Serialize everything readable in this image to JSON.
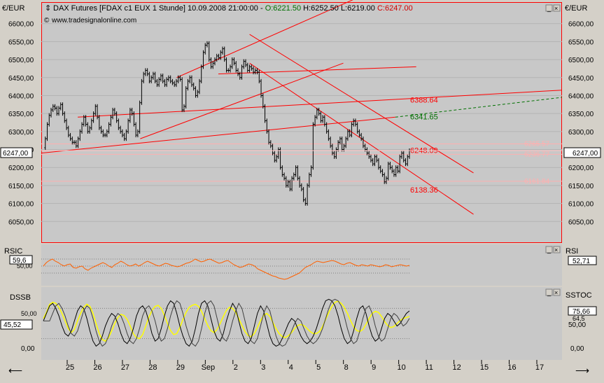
{
  "header": {
    "icon": "chart-icon",
    "title": "DAX Futures [FDAX c1 EUX  1 Stunde] 10.09.2008 21:00:00 -",
    "open": "O:6221.50",
    "hlc": "H:6252.50 L:6219.00",
    "close": "C:6247.00",
    "website": "www.tradesignalonline.com"
  },
  "colors": {
    "background": "#c0c0c0",
    "pane_bg": "#c8c8c8",
    "price": "#000000",
    "trend": "#ff0000",
    "forecast": "#007000",
    "rsi": "#ff6000",
    "stoch_fast": "#000000",
    "stoch_slow": "#ffff00",
    "frame": "#ff0000"
  },
  "price_pane": {
    "unit_left": "€/EUR",
    "unit_right": "€/EUR",
    "ylim": [
      6000,
      6650
    ],
    "ticks": [
      "6600,00",
      "6550,00",
      "6500,00",
      "6450,00",
      "6400,00",
      "6350,00",
      "6300,00",
      "6250,00",
      "6200,00",
      "6150,00",
      "6100,00",
      "6050,00"
    ],
    "tick_values": [
      6600,
      6550,
      6500,
      6450,
      6400,
      6350,
      6300,
      6250,
      6200,
      6150,
      6100,
      6050
    ],
    "current_left": "6247,00",
    "current_right": "6247,00",
    "current_value": 6247,
    "levels": [
      {
        "label": "6388.64",
        "value": 6388.64,
        "color": "#ff0000"
      },
      {
        "label": "6341.65",
        "value": 6341.65,
        "color": "#007000"
      },
      {
        "label": "6248.09",
        "value": 6248.09,
        "color": "#ff0000"
      },
      {
        "label": "6138.36",
        "value": 6138.36,
        "color": "#ff0000"
      }
    ],
    "right_levels": [
      {
        "label": "6265.57",
        "value": 6265.57
      },
      {
        "label": "6236.77",
        "value": 6236.77
      },
      {
        "label": "6161.84",
        "value": 6161.84
      }
    ]
  },
  "rsi_pane": {
    "label_left": "RSIC",
    "value_left": "59,6",
    "label_left2": "50,00",
    "label_right": "RSI",
    "value_right": "52,71",
    "ylim": [
      25,
      78
    ],
    "gridlines": [
      60,
      50,
      40
    ]
  },
  "stoch_pane": {
    "label_left": "DSSB",
    "value_left": "45,52",
    "label_right": "SSTOC",
    "values_right": [
      "75,66",
      "64,5",
      "50,00",
      "0,00"
    ],
    "ticks_left": [
      "50,00",
      "0,00"
    ],
    "ylim": [
      -18,
      118
    ],
    "gridlines": [
      80,
      20
    ]
  },
  "x_axis": {
    "labels": [
      "25",
      "26",
      "27",
      "28",
      "29",
      "Sep",
      "2",
      "3",
      "4",
      "5",
      "8",
      "9",
      "10",
      "11",
      "12",
      "15",
      "16",
      "17"
    ]
  },
  "chart_data": {
    "type": "line",
    "title": "DAX Futures [FDAX c1 EUX  1 Stunde]",
    "xlabel": "",
    "ylabel": "€/EUR",
    "days": [
      "25",
      "26",
      "27",
      "28",
      "29",
      "Sep",
      "2",
      "3",
      "4",
      "5",
      "8",
      "9",
      "10"
    ],
    "ylim": [
      6000,
      6650
    ],
    "series": [
      {
        "name": "DAX Futures",
        "values": [
          6255,
          6280,
          6320,
          6345,
          6360,
          6370,
          6365,
          6350,
          6365,
          6375,
          6350,
          6330,
          6310,
          6290,
          6280,
          6270,
          6270,
          6260,
          6280,
          6300,
          6320,
          6340,
          6320,
          6300,
          6310,
          6330,
          6350,
          6370,
          6340,
          6310,
          6300,
          6290,
          6290,
          6300,
          6320,
          6340,
          6360,
          6350,
          6330,
          6310,
          6300,
          6290,
          6280,
          6300,
          6330,
          6360,
          6350,
          6320,
          6290,
          6300,
          6380,
          6440,
          6460,
          6470,
          6460,
          6440,
          6450,
          6460,
          6440,
          6430,
          6445,
          6455,
          6440,
          6430,
          6445,
          6450,
          6440,
          6435,
          6430,
          6440,
          6450,
          6445,
          6360,
          6370,
          6420,
          6440,
          6450,
          6430,
          6420,
          6400,
          6410,
          6440,
          6480,
          6520,
          6540,
          6545,
          6500,
          6480,
          6490,
          6500,
          6510,
          6505,
          6520,
          6530,
          6500,
          6470,
          6470,
          6480,
          6500,
          6490,
          6470,
          6460,
          6450,
          6480,
          6495,
          6485,
          6470,
          6480,
          6475,
          6465,
          6470,
          6465,
          6440,
          6400,
          6370,
          6330,
          6300,
          6270,
          6260,
          6240,
          6220,
          6230,
          6250,
          6200,
          6180,
          6170,
          6150,
          6160,
          6140,
          6170,
          6180,
          6200,
          6170,
          6150,
          6140,
          6110,
          6100,
          6150,
          6180,
          6200,
          6320,
          6340,
          6360,
          6350,
          6330,
          6340,
          6320,
          6300,
          6280,
          6260,
          6240,
          6230,
          6250,
          6270,
          6280,
          6250,
          6260,
          6280,
          6300,
          6290,
          6320,
          6330,
          6320,
          6300,
          6290,
          6280,
          6260,
          6250,
          6240,
          6230,
          6220,
          6210,
          6230,
          6220,
          6200,
          6190,
          6180,
          6160,
          6170,
          6210,
          6200,
          6190,
          6180,
          6200,
          6190,
          6230,
          6240,
          6220,
          6210,
          6230,
          6247
        ]
      },
      {
        "name": "RSI",
        "values": [
          50,
          55,
          58,
          60,
          57,
          55,
          52,
          50,
          52,
          53,
          48,
          47,
          49,
          50,
          46,
          44,
          47,
          49,
          51,
          53,
          55,
          53,
          50,
          48,
          52,
          54,
          57,
          55,
          52,
          50,
          51,
          53,
          50,
          52,
          55,
          57,
          55,
          53,
          51,
          50,
          52,
          54,
          53,
          51,
          50,
          49,
          50,
          52,
          54,
          55,
          57,
          60,
          58,
          56,
          57,
          59,
          60,
          58,
          56,
          54,
          55,
          57,
          58,
          55,
          52,
          50,
          48,
          49,
          51,
          53,
          52,
          50,
          46,
          44,
          42,
          40,
          38,
          36,
          35,
          33,
          32,
          31,
          32,
          34,
          36,
          38,
          40,
          44,
          48,
          50,
          52,
          55,
          57,
          56,
          55,
          56,
          57,
          58,
          57,
          55,
          53,
          52,
          54,
          55,
          53,
          51,
          50,
          52,
          51,
          50,
          52,
          51,
          50,
          49,
          50,
          52,
          51,
          49,
          50,
          51,
          52,
          51,
          50,
          51
        ]
      },
      {
        "name": "DSSB",
        "values": [
          55,
          70,
          85,
          90,
          80,
          65,
          45,
          30,
          25,
          35,
          55,
          75,
          85,
          80,
          60,
          35,
          15,
          5,
          10,
          25,
          45,
          60,
          70,
          65,
          50,
          30,
          15,
          10,
          20,
          40,
          65,
          80,
          85,
          75,
          55,
          30,
          15,
          20,
          40,
          65,
          85,
          95,
          90,
          70,
          45,
          25,
          10,
          5,
          15,
          40,
          70,
          90,
          95,
          85,
          60,
          35,
          20,
          15,
          30,
          55,
          75,
          90,
          80,
          55,
          30,
          15,
          10,
          20,
          45,
          70,
          85,
          75,
          50,
          25,
          10,
          5,
          8,
          20,
          35,
          50,
          60,
          55,
          40,
          25,
          15,
          10,
          15,
          25,
          40,
          60,
          80,
          95,
          98,
          95,
          85,
          65,
          40,
          20,
          10,
          15,
          35,
          60,
          80,
          85,
          70,
          45,
          25,
          15,
          20,
          40,
          60,
          70,
          65,
          55,
          45,
          50,
          60,
          70,
          75
        ]
      },
      {
        "name": "SSTOC",
        "values": [
          60,
          72,
          88,
          92,
          90,
          82,
          70,
          55,
          40,
          32,
          38,
          55,
          70,
          82,
          88,
          84,
          70,
          50,
          30,
          18,
          15,
          22,
          35,
          50,
          62,
          68,
          66,
          58,
          45,
          30,
          22,
          20,
          28,
          45,
          62,
          76,
          84,
          86,
          80,
          66,
          50,
          36,
          28,
          30,
          42,
          58,
          72,
          82,
          86,
          88,
          84,
          74,
          60,
          46,
          36,
          32,
          38,
          50,
          64,
          76,
          82,
          80,
          72,
          60,
          46,
          34,
          26,
          24,
          30,
          42,
          56,
          66,
          70,
          64,
          52,
          40,
          30,
          24,
          22,
          26,
          32,
          40,
          46,
          48,
          46,
          40,
          34,
          30,
          30,
          34,
          44,
          58,
          72,
          84,
          92,
          94,
          90,
          82,
          70,
          56,
          44,
          36,
          34,
          38,
          48,
          60,
          70,
          74,
          72,
          64,
          54,
          46,
          42,
          44,
          50,
          56,
          60,
          62,
          64
        ]
      }
    ],
    "trendlines": [
      {
        "from": {
          "x": 0.07,
          "y": 6340
        },
        "to": {
          "x": 1.0,
          "y": 6415
        }
      },
      {
        "from": {
          "x": 0.26,
          "y": 6450
        },
        "to": {
          "x": 0.62,
          "y": 6680
        }
      },
      {
        "from": {
          "x": 0.19,
          "y": 6280
        },
        "to": {
          "x": 0.58,
          "y": 6490
        }
      },
      {
        "from": {
          "x": 0.0,
          "y": 6240
        },
        "to": {
          "x": 0.68,
          "y": 6340
        }
      },
      {
        "from": {
          "x": 0.34,
          "y": 6460
        },
        "to": {
          "x": 0.72,
          "y": 6480
        }
      },
      {
        "from": {
          "x": 0.4,
          "y": 6570
        },
        "to": {
          "x": 0.83,
          "y": 6185
        }
      },
      {
        "from": {
          "x": 0.4,
          "y": 6490
        },
        "to": {
          "x": 0.83,
          "y": 6070
        }
      },
      {
        "from": {
          "x": 0.68,
          "y": 6340
        },
        "to": {
          "x": 1.0,
          "y": 6395
        }
      }
    ]
  }
}
